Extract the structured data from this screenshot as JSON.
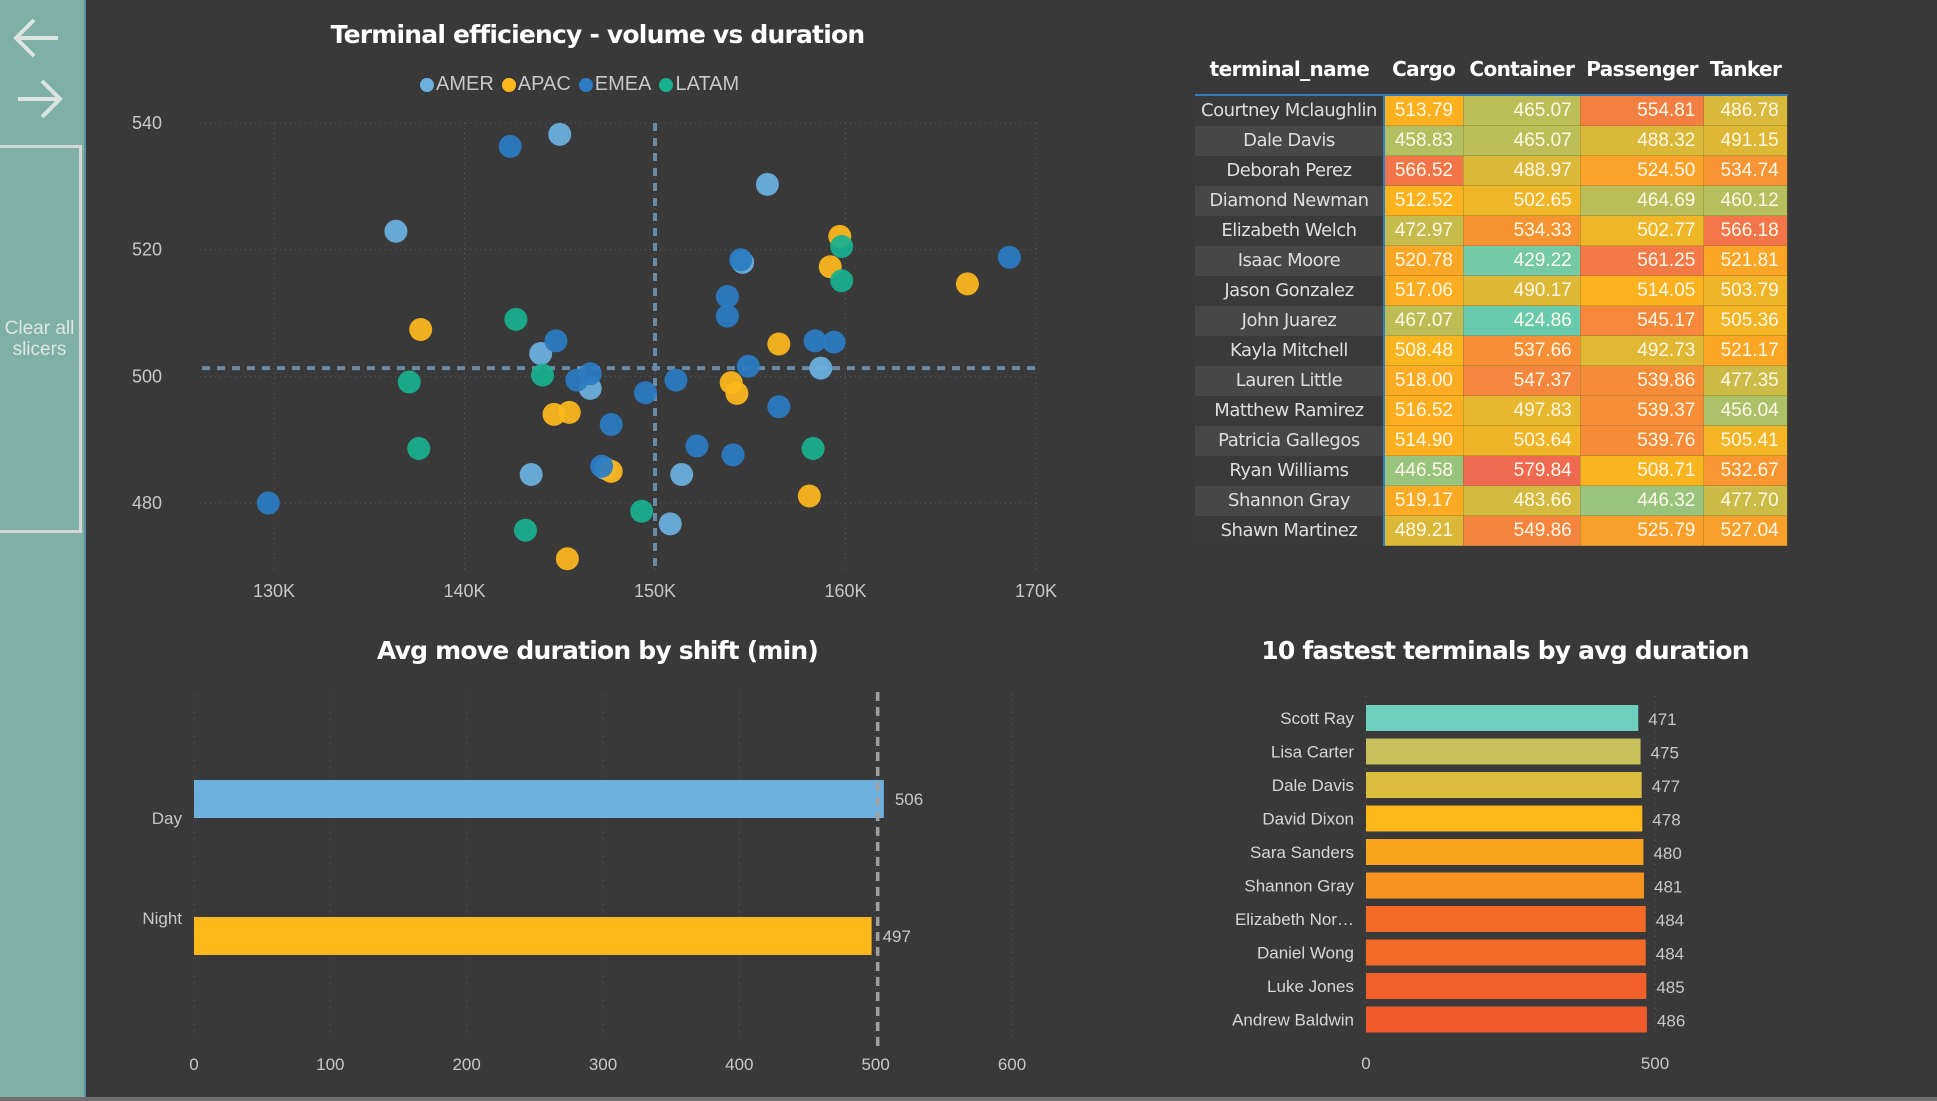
{
  "sidebar": {
    "back_icon": "arrow-left-icon",
    "forward_icon": "arrow-right-icon",
    "clear_button_line1": "Clear all",
    "clear_button_line2": "slicers"
  },
  "scatter": {
    "title": "Terminal efficiency - volume vs duration",
    "legend": [
      {
        "label": "AMER",
        "color": "#6cb0e0"
      },
      {
        "label": "APAC",
        "color": "#fdb81c"
      },
      {
        "label": "EMEA",
        "color": "#2b7cc4"
      },
      {
        "label": "LATAM",
        "color": "#19b08f"
      }
    ]
  },
  "matrix": {
    "headers": [
      "terminal_name",
      "Cargo",
      "Container",
      "Passenger",
      "Tanker"
    ],
    "rows": [
      {
        "name": "Courtney Mclaughlin",
        "values": [
          "513.79",
          "465.07",
          "554.81",
          "486.78"
        ]
      },
      {
        "name": "Dale Davis",
        "values": [
          "458.83",
          "465.07",
          "488.32",
          "491.15"
        ]
      },
      {
        "name": "Deborah Perez",
        "values": [
          "566.52",
          "488.97",
          "524.50",
          "534.74"
        ]
      },
      {
        "name": "Diamond Newman",
        "values": [
          "512.52",
          "502.65",
          "464.69",
          "460.12"
        ]
      },
      {
        "name": "Elizabeth Welch",
        "values": [
          "472.97",
          "534.33",
          "502.77",
          "566.18"
        ]
      },
      {
        "name": "Isaac Moore",
        "values": [
          "520.78",
          "429.22",
          "561.25",
          "521.81"
        ]
      },
      {
        "name": "Jason Gonzalez",
        "values": [
          "517.06",
          "490.17",
          "514.05",
          "503.79"
        ]
      },
      {
        "name": "John Juarez",
        "values": [
          "467.07",
          "424.86",
          "545.17",
          "505.36"
        ]
      },
      {
        "name": "Kayla Mitchell",
        "values": [
          "508.48",
          "537.66",
          "492.73",
          "521.17"
        ]
      },
      {
        "name": "Lauren Little",
        "values": [
          "518.00",
          "547.37",
          "539.86",
          "477.35"
        ]
      },
      {
        "name": "Matthew Ramirez",
        "values": [
          "516.52",
          "497.83",
          "539.37",
          "456.04"
        ]
      },
      {
        "name": "Patricia Gallegos",
        "values": [
          "514.90",
          "503.64",
          "539.76",
          "505.41"
        ]
      },
      {
        "name": "Ryan Williams",
        "values": [
          "446.58",
          "579.84",
          "508.71",
          "532.67"
        ]
      },
      {
        "name": "Shannon Gray",
        "values": [
          "519.17",
          "483.66",
          "446.32",
          "477.70"
        ]
      },
      {
        "name": "Shawn Martinez",
        "values": [
          "489.21",
          "549.86",
          "525.79",
          "527.04"
        ]
      }
    ],
    "color_scale": {
      "low": "#5fcdb9",
      "mid_low": "#b5bf5e",
      "mid": "#fdb81c",
      "mid_high": "#f68c38",
      "high": "#f06a52"
    }
  },
  "chart_data": [
    {
      "type": "scatter",
      "title": "Terminal efficiency - volume vs duration",
      "xlabel": "",
      "ylabel": "",
      "xlim": [
        127000,
        170500
      ],
      "ylim": [
        470,
        543
      ],
      "xticks": [
        130000,
        140000,
        150000,
        160000,
        170000
      ],
      "xtick_labels": [
        "130K",
        "140K",
        "150K",
        "160K",
        "170K"
      ],
      "yticks": [
        480,
        500,
        520,
        540
      ],
      "ytick_labels": [
        "480",
        "500",
        "520",
        "540"
      ],
      "grid": true,
      "legend": "top-center",
      "reference_lines": {
        "x": 150000,
        "y": 501.3
      },
      "series": [
        {
          "name": "AMER",
          "color": "#6cb0e0",
          "points": [
            [
              145000,
              538.2
            ],
            [
              136400,
              522.9
            ],
            [
              155900,
              530.3
            ],
            [
              144000,
              503.6
            ],
            [
              146600,
              498.1
            ],
            [
              143500,
              484.5
            ],
            [
              151400,
              484.5
            ],
            [
              150800,
              476.7
            ],
            [
              158700,
              501.3
            ],
            [
              154600,
              518.0
            ],
            [
              147400,
              485.4
            ]
          ]
        },
        {
          "name": "APAC",
          "color": "#fdb81c",
          "points": [
            [
              137700,
              507.4
            ],
            [
              144700,
              494.0
            ],
            [
              145500,
              494.3
            ],
            [
              145400,
              471.2
            ],
            [
              147700,
              485.0
            ],
            [
              154000,
              499.0
            ],
            [
              154300,
              497.3
            ],
            [
              156500,
              505.1
            ],
            [
              159700,
              522.1
            ],
            [
              159200,
              517.3
            ],
            [
              166400,
              514.6
            ],
            [
              158100,
              481.1
            ]
          ]
        },
        {
          "name": "EMEA",
          "color": "#2b7cc4",
          "points": [
            [
              142400,
              536.3
            ],
            [
              129700,
              480.0
            ],
            [
              144800,
              505.6
            ],
            [
              145900,
              499.4
            ],
            [
              146600,
              500.4
            ],
            [
              147700,
              492.4
            ],
            [
              149500,
              497.4
            ],
            [
              151100,
              499.4
            ],
            [
              147200,
              485.8
            ],
            [
              152200,
              489.0
            ],
            [
              154100,
              487.6
            ],
            [
              153800,
              512.6
            ],
            [
              153800,
              509.5
            ],
            [
              154500,
              518.4
            ],
            [
              154900,
              501.6
            ],
            [
              156500,
              495.2
            ],
            [
              158400,
              505.6
            ],
            [
              159400,
              505.4
            ],
            [
              168600,
              518.8
            ]
          ]
        },
        {
          "name": "LATAM",
          "color": "#19b08f",
          "points": [
            [
              142700,
              509.0
            ],
            [
              137100,
              499.1
            ],
            [
              137600,
              488.6
            ],
            [
              144100,
              500.2
            ],
            [
              143200,
              475.7
            ],
            [
              149300,
              478.7
            ],
            [
              158300,
              488.6
            ],
            [
              159800,
              520.5
            ],
            [
              159800,
              515.1
            ]
          ]
        }
      ]
    },
    {
      "type": "bar",
      "orientation": "horizontal",
      "title": "Avg move duration by shift (min)",
      "categories": [
        "Day",
        "Night"
      ],
      "values": [
        506,
        497
      ],
      "colors": [
        "#6cb0e0",
        "#fdb81c"
      ],
      "data_labels": [
        "506",
        "497"
      ],
      "xlim": [
        0,
        600
      ],
      "xticks": [
        0,
        100,
        200,
        300,
        400,
        500,
        600
      ],
      "xtick_labels": [
        "0",
        "100",
        "200",
        "300",
        "400",
        "500",
        "600"
      ],
      "reference_line": 501.5,
      "grid": true
    },
    {
      "type": "bar",
      "orientation": "horizontal",
      "title": "10 fastest terminals by avg duration",
      "categories": [
        "Scott Ray",
        "Lisa Carter",
        "Dale Davis",
        "David Dixon",
        "Sara Sanders",
        "Shannon Gray",
        "Elizabeth Nor…",
        "Daniel Wong",
        "Luke Jones",
        "Andrew Baldwin"
      ],
      "values": [
        471,
        475,
        477,
        478,
        480,
        481,
        484,
        484,
        485,
        486
      ],
      "colors": [
        "#6dd0bd",
        "#c8c05a",
        "#ddbd3d",
        "#fdb81c",
        "#f8a51e",
        "#f7931f",
        "#f26a26",
        "#f26a26",
        "#f1602a",
        "#ef5a2b"
      ],
      "data_labels": [
        "471",
        "475",
        "477",
        "478",
        "480",
        "481",
        "484",
        "484",
        "485",
        "486"
      ],
      "xlim": [
        0,
        500
      ],
      "xticks": [
        0,
        500
      ],
      "xtick_labels": [
        "0",
        "500"
      ],
      "grid": true
    }
  ]
}
